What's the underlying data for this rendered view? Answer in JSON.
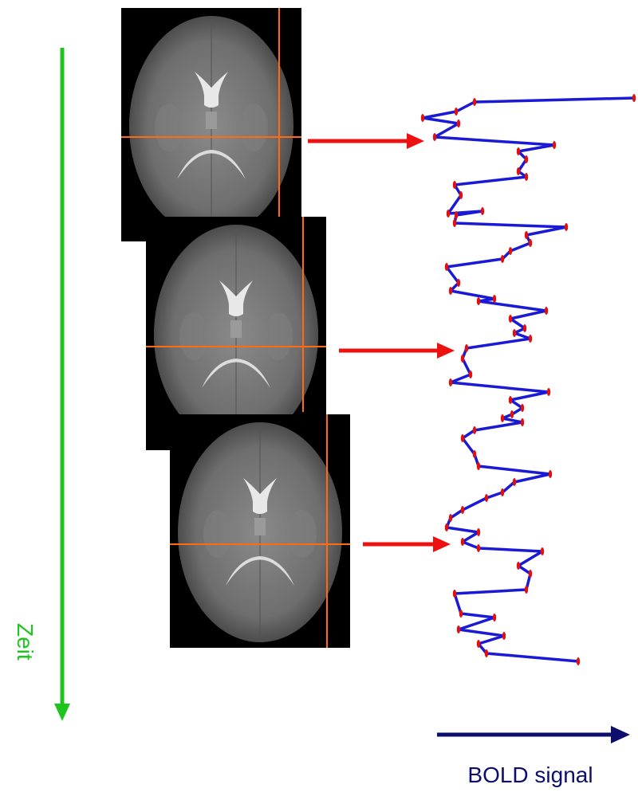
{
  "labels": {
    "time_axis": "Zeit",
    "signal_axis": "BOLD signal"
  }
}
